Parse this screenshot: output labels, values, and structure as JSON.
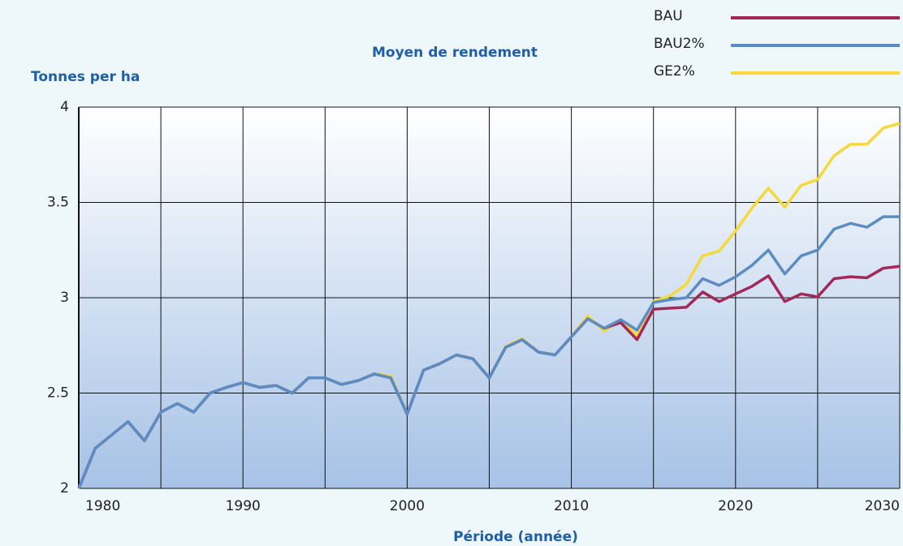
{
  "chart_data": {
    "type": "line",
    "title": "Moyen de rendement",
    "y_label": "Tonnes per ha",
    "x_label": "Période (année)",
    "x": [
      1980,
      1981,
      1982,
      1983,
      1984,
      1985,
      1986,
      1987,
      1988,
      1989,
      1990,
      1991,
      1992,
      1993,
      1994,
      1995,
      1996,
      1997,
      1998,
      1999,
      2000,
      2001,
      2002,
      2003,
      2004,
      2005,
      2006,
      2007,
      2008,
      2009,
      2010,
      2011,
      2012,
      2013,
      2014,
      2015,
      2016,
      2017,
      2018,
      2019,
      2020,
      2021,
      2022,
      2023,
      2024,
      2025,
      2026,
      2027,
      2028,
      2029,
      2030
    ],
    "series": [
      {
        "name": "GE2%",
        "color": "#f5d93a",
        "values": [
          2.0,
          2.21,
          2.28,
          2.35,
          2.25,
          2.4,
          2.445,
          2.4,
          2.5,
          2.53,
          2.555,
          2.53,
          2.54,
          2.5,
          2.58,
          2.58,
          2.545,
          2.565,
          2.6,
          2.59,
          2.39,
          2.62,
          2.655,
          2.7,
          2.68,
          2.58,
          2.745,
          2.785,
          2.715,
          2.7,
          2.795,
          2.905,
          2.825,
          2.885,
          2.8,
          2.98,
          3.01,
          3.07,
          3.22,
          3.245,
          3.35,
          3.47,
          3.575,
          3.475,
          3.59,
          3.62,
          3.745,
          3.805,
          3.805,
          3.89,
          3.915
        ]
      },
      {
        "name": "BAU",
        "color": "#a3285a",
        "values": [
          2.0,
          2.21,
          2.28,
          2.35,
          2.25,
          2.4,
          2.445,
          2.4,
          2.5,
          2.53,
          2.555,
          2.53,
          2.54,
          2.5,
          2.58,
          2.58,
          2.545,
          2.565,
          2.6,
          2.58,
          2.39,
          2.62,
          2.655,
          2.7,
          2.68,
          2.58,
          2.74,
          2.78,
          2.715,
          2.7,
          2.795,
          2.89,
          2.84,
          2.87,
          2.78,
          2.94,
          2.945,
          2.95,
          3.03,
          2.98,
          3.02,
          3.06,
          3.115,
          2.98,
          3.02,
          3.005,
          3.1,
          3.11,
          3.105,
          3.155,
          3.165
        ]
      },
      {
        "name": "BAU2%",
        "color": "#5b8cc4",
        "values": [
          2.0,
          2.21,
          2.28,
          2.35,
          2.25,
          2.4,
          2.445,
          2.4,
          2.5,
          2.53,
          2.555,
          2.53,
          2.54,
          2.5,
          2.58,
          2.58,
          2.545,
          2.565,
          2.6,
          2.58,
          2.39,
          2.62,
          2.655,
          2.7,
          2.68,
          2.58,
          2.74,
          2.78,
          2.715,
          2.7,
          2.795,
          2.89,
          2.84,
          2.885,
          2.83,
          2.975,
          2.99,
          3.0,
          3.1,
          3.065,
          3.11,
          3.17,
          3.25,
          3.125,
          3.22,
          3.25,
          3.36,
          3.39,
          3.37,
          3.425,
          3.425
        ]
      }
    ],
    "xlim": [
      1980,
      2030
    ],
    "xticks": [
      1980,
      1990,
      2000,
      2010,
      2020,
      2030
    ],
    "ylim": [
      2,
      4
    ],
    "yticks": [
      2,
      2.5,
      3,
      3.5,
      4
    ],
    "grid": true,
    "legend": "top-right"
  }
}
